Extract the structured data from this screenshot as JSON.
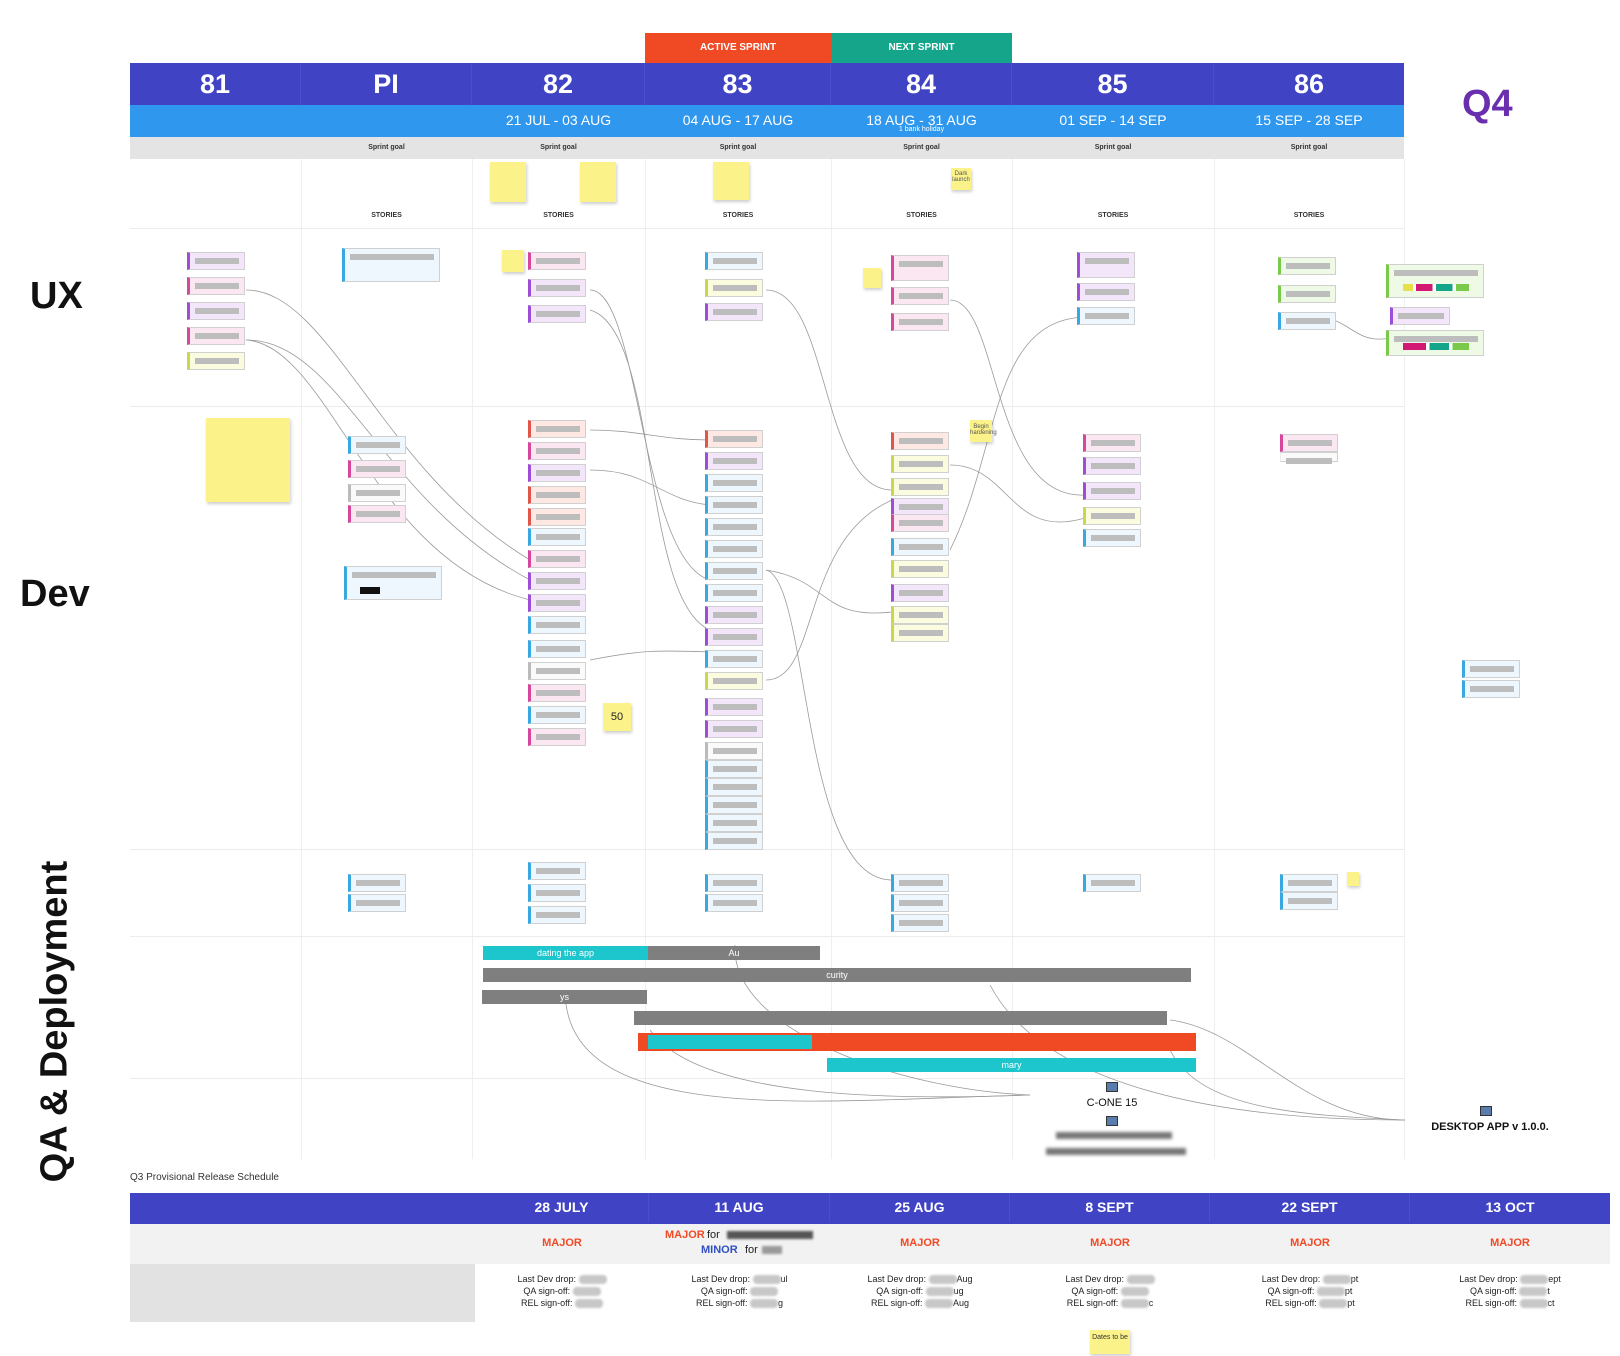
{
  "header": {
    "active_sprint": "ACTIVE SPRINT",
    "next_sprint": "NEXT SPRINT",
    "quarter": "Q4",
    "sprints": [
      {
        "label": "81",
        "dates": "",
        "note": ""
      },
      {
        "label": "PI",
        "dates": "",
        "note": ""
      },
      {
        "label": "82",
        "dates": "21 JUL - 03 AUG",
        "note": ""
      },
      {
        "label": "83",
        "dates": "04 AUG - 17 AUG",
        "note": ""
      },
      {
        "label": "84",
        "dates": "18 AUG - 31 AUG",
        "note": "1 bank holiday"
      },
      {
        "label": "85",
        "dates": "01 SEP - 14 SEP",
        "note": ""
      },
      {
        "label": "86",
        "dates": "15 SEP - 28 SEP",
        "note": ""
      }
    ],
    "sprint_goal_label": "Sprint goal",
    "stories_label": "STORIES"
  },
  "lanes": {
    "ux": "UX",
    "dev": "Dev",
    "qa": "QA & Deployment"
  },
  "stickies": {
    "dark_launch": "Dark launch",
    "begin_hardening": "Begin hardening",
    "count_50": "50",
    "dates_to_be": "Dates to be"
  },
  "bars": {
    "bar1": "dating the app",
    "bar2": "Au",
    "bar3": "curity",
    "bar4": "ys",
    "bar5": "mary"
  },
  "milestones": {
    "cone": "C-ONE 15",
    "desktop": "DESKTOP APP v 1.0.0."
  },
  "release": {
    "title": "Q3 Provisional Release Schedule",
    "columns": [
      {
        "date": "28 JULY",
        "type": "MAJOR"
      },
      {
        "date": "11 AUG",
        "type": "MAJOR",
        "minor": "MINOR",
        "for": "for"
      },
      {
        "date": "25 AUG",
        "type": "MAJOR"
      },
      {
        "date": "8 SEPT",
        "type": "MAJOR"
      },
      {
        "date": "22 SEPT",
        "type": "MAJOR"
      },
      {
        "date": "13 OCT",
        "type": "MAJOR"
      }
    ],
    "last_dev_drop": "Last Dev drop:",
    "qa_signoff": "QA sign-off:",
    "rel_signoff": "REL sign-off:",
    "partials": [
      {
        "dev": "",
        "qa": "",
        "rel": ""
      },
      {
        "dev": "ul",
        "qa": "",
        "rel": "g"
      },
      {
        "dev": "Aug",
        "qa": "ug",
        "rel": "Aug"
      },
      {
        "dev": "",
        "qa": "",
        "rel": "c"
      },
      {
        "dev": "pt",
        "qa": "pt",
        "rel": "pt"
      },
      {
        "dev": "ept",
        "qa": "t",
        "rel": "ct"
      }
    ]
  },
  "colors": {
    "header_blue": "#4044c4",
    "date_blue": "#2f98ee",
    "active_red": "#f04a25",
    "next_green": "#14a58a",
    "quarter_purple": "#6a2fae",
    "cyan": "#1cc6cc",
    "bar_gray": "#7f7f7f"
  }
}
